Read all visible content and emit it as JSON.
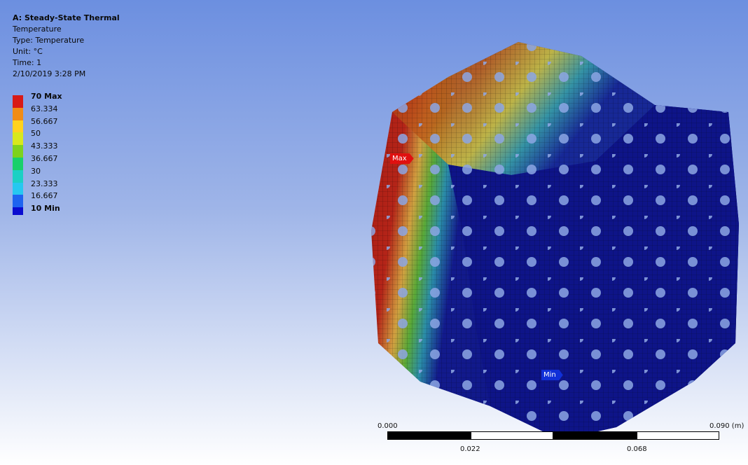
{
  "result": {
    "title": "A: Steady-State Thermal",
    "name": "Temperature",
    "type": "Type: Temperature",
    "unit": "Unit: °C",
    "time": "Time: 1",
    "date": "2/10/2019 3:28 PM"
  },
  "legend": [
    {
      "label": "70 Max",
      "color": "#d81a16",
      "bold": true
    },
    {
      "label": "63.334",
      "color": "#f08c16"
    },
    {
      "label": "56.667",
      "color": "#ffd21e"
    },
    {
      "label": "50",
      "color": "#d8e81c"
    },
    {
      "label": "43.333",
      "color": "#7ed21c"
    },
    {
      "label": "36.667",
      "color": "#18d06a"
    },
    {
      "label": "30",
      "color": "#1cd0c4"
    },
    {
      "label": "23.333",
      "color": "#26c8f0"
    },
    {
      "label": "16.667",
      "color": "#1e64f0"
    },
    {
      "label": "10 Min",
      "color": "#0a0cd0",
      "bold": true
    }
  ],
  "probes": {
    "max": {
      "label": "Max",
      "color": "#e01010"
    },
    "min": {
      "label": "Min",
      "color": "#1030d8"
    }
  },
  "scale_bar": {
    "start": "0.000",
    "end": "0.090 (m)",
    "mid_left": "0.022",
    "mid_right": "0.068"
  },
  "colors": {
    "background_top": "#6c8fe0",
    "background_bottom": "#ffffff",
    "hot": "#b01c14",
    "cold": "#10168e"
  }
}
